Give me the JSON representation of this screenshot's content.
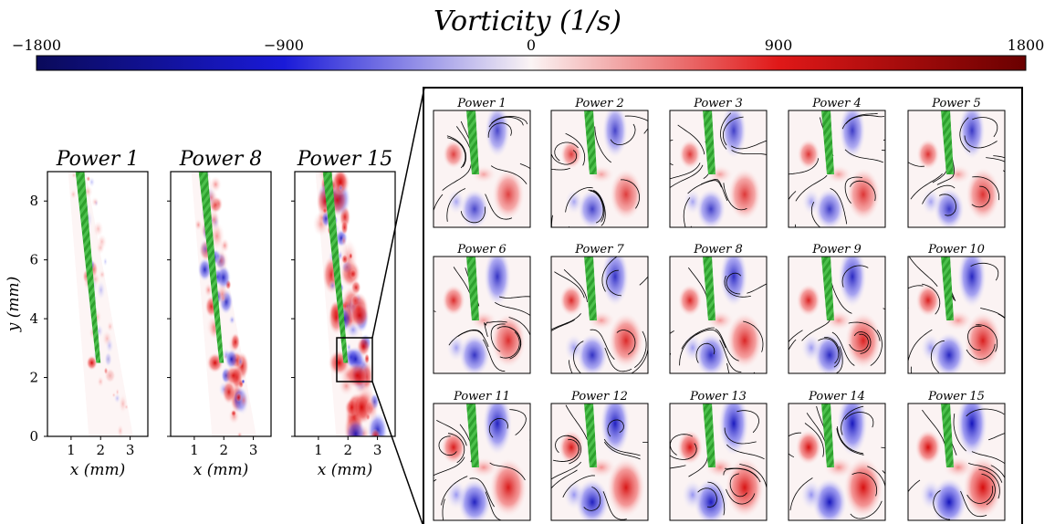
{
  "chart_data": [
    {
      "type": "heatmap",
      "title": "Vorticity (1/s)",
      "colorbar": {
        "label": "Vorticity (1/s)",
        "range": [
          -1800,
          1800
        ],
        "ticks": [
          "−1800",
          "−900",
          "0",
          "900",
          "1800"
        ],
        "colors": [
          "#08084a",
          "#1515d8",
          "#ffffff",
          "#e01010",
          "#700000"
        ]
      }
    },
    {
      "type": "heatmap",
      "panels": [
        {
          "title": "Power 1"
        },
        {
          "title": "Power 8"
        },
        {
          "title": "Power 15"
        }
      ],
      "xlabel": "x (mm)",
      "ylabel": "y (mm)",
      "xticks": [
        "1",
        "2",
        "3"
      ],
      "yticks": [
        "0",
        "2",
        "4",
        "6",
        "8"
      ],
      "xlim": [
        0.2,
        3.6
      ],
      "ylim": [
        0,
        9
      ],
      "needle_color": "#2ea02e"
    },
    {
      "type": "heatmap",
      "description_panels": [
        "Power 1",
        "Power 2",
        "Power 3",
        "Power 4",
        "Power 5",
        "Power 6",
        "Power 7",
        "Power 8",
        "Power 9",
        "Power 10",
        "Power 11",
        "Power 12",
        "Power 13",
        "Power 14",
        "Power 15"
      ]
    }
  ]
}
